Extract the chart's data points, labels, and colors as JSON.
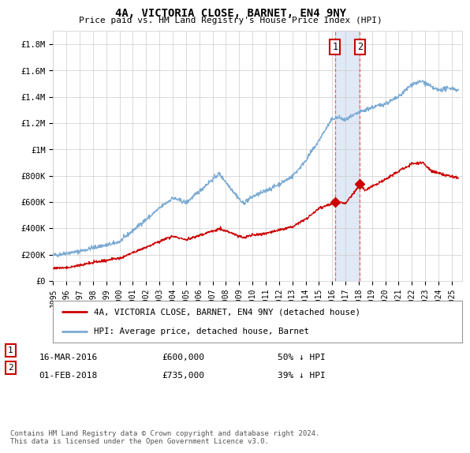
{
  "title": "4A, VICTORIA CLOSE, BARNET, EN4 9NY",
  "subtitle": "Price paid vs. HM Land Registry's House Price Index (HPI)",
  "ylim": [
    0,
    1900000
  ],
  "yticks": [
    0,
    200000,
    400000,
    600000,
    800000,
    1000000,
    1200000,
    1400000,
    1600000,
    1800000
  ],
  "ytick_labels": [
    "£0",
    "£200K",
    "£400K",
    "£600K",
    "£800K",
    "£1M",
    "£1.2M",
    "£1.4M",
    "£1.6M",
    "£1.8M"
  ],
  "hpi_color": "#7aaad4",
  "price_color": "#cc0000",
  "transaction1_x": 2016.21,
  "transaction1_price": 600000,
  "transaction2_x": 2018.08,
  "transaction2_price": 735000,
  "shade_color": "#c8d8f0",
  "dashed_color": "#dd4444",
  "legend_line1": "4A, VICTORIA CLOSE, BARNET, EN4 9NY (detached house)",
  "legend_line2": "HPI: Average price, detached house, Barnet",
  "footer": "Contains HM Land Registry data © Crown copyright and database right 2024.\nThis data is licensed under the Open Government Licence v3.0.",
  "table_row1_date": "16-MAR-2016",
  "table_row1_price": "£600,000",
  "table_row1_hpi": "50% ↓ HPI",
  "table_row2_date": "01-FEB-2018",
  "table_row2_price": "£735,000",
  "table_row2_hpi": "39% ↓ HPI",
  "background_color": "#ffffff",
  "grid_color": "#cccccc",
  "xlim_start": 1995,
  "xlim_end": 2025.8
}
